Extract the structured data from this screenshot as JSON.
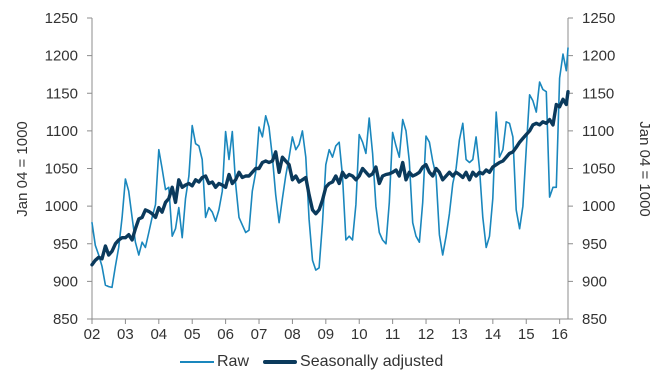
{
  "chart_data": {
    "type": "line",
    "xlabel": "",
    "ylabel_left": "Jan 04 = 1000",
    "ylabel_right": "Jan 04 = 1000",
    "ylim": [
      850,
      1250
    ],
    "yticks": [
      850,
      900,
      950,
      1000,
      1050,
      1100,
      1150,
      1200,
      1250
    ],
    "xlim": [
      2002.0,
      2016.25
    ],
    "xticks": [
      {
        "value": 2002,
        "label": "02"
      },
      {
        "value": 2003,
        "label": "03"
      },
      {
        "value": 2004,
        "label": "04"
      },
      {
        "value": 2005,
        "label": "05"
      },
      {
        "value": 2006,
        "label": "06"
      },
      {
        "value": 2007,
        "label": "07"
      },
      {
        "value": 2008,
        "label": "08"
      },
      {
        "value": 2009,
        "label": "09"
      },
      {
        "value": 2010,
        "label": "10"
      },
      {
        "value": 2011,
        "label": "11"
      },
      {
        "value": 2012,
        "label": "12"
      },
      {
        "value": 2013,
        "label": "13"
      },
      {
        "value": 2014,
        "label": "14"
      },
      {
        "value": 2015,
        "label": "15"
      },
      {
        "value": 2016,
        "label": "16"
      }
    ],
    "grid": false,
    "legend_position": "bottom",
    "series": [
      {
        "name": "Raw",
        "color": "#1a87bd",
        "width": "thin",
        "points": [
          [
            2002.0,
            978
          ],
          [
            2002.1,
            948
          ],
          [
            2002.2,
            935
          ],
          [
            2002.3,
            920
          ],
          [
            2002.4,
            895
          ],
          [
            2002.5,
            893
          ],
          [
            2002.6,
            892
          ],
          [
            2002.7,
            920
          ],
          [
            2002.8,
            945
          ],
          [
            2002.9,
            985
          ],
          [
            2003.0,
            1036
          ],
          [
            2003.1,
            1020
          ],
          [
            2003.2,
            985
          ],
          [
            2003.3,
            952
          ],
          [
            2003.4,
            935
          ],
          [
            2003.5,
            952
          ],
          [
            2003.6,
            945
          ],
          [
            2003.7,
            965
          ],
          [
            2003.8,
            985
          ],
          [
            2003.9,
            1002
          ],
          [
            2004.0,
            1075
          ],
          [
            2004.1,
            1050
          ],
          [
            2004.2,
            1022
          ],
          [
            2004.3,
            1025
          ],
          [
            2004.4,
            960
          ],
          [
            2004.5,
            970
          ],
          [
            2004.6,
            998
          ],
          [
            2004.7,
            958
          ],
          [
            2004.8,
            1010
          ],
          [
            2004.9,
            1040
          ],
          [
            2005.0,
            1107
          ],
          [
            2005.1,
            1083
          ],
          [
            2005.2,
            1080
          ],
          [
            2005.3,
            1062
          ],
          [
            2005.4,
            985
          ],
          [
            2005.5,
            998
          ],
          [
            2005.6,
            992
          ],
          [
            2005.7,
            980
          ],
          [
            2005.8,
            995
          ],
          [
            2005.9,
            1020
          ],
          [
            2006.0,
            1099
          ],
          [
            2006.1,
            1062
          ],
          [
            2006.2,
            1099
          ],
          [
            2006.3,
            1030
          ],
          [
            2006.4,
            985
          ],
          [
            2006.5,
            975
          ],
          [
            2006.6,
            965
          ],
          [
            2006.7,
            968
          ],
          [
            2006.8,
            1020
          ],
          [
            2006.9,
            1045
          ],
          [
            2007.0,
            1105
          ],
          [
            2007.1,
            1092
          ],
          [
            2007.2,
            1120
          ],
          [
            2007.3,
            1105
          ],
          [
            2007.4,
            1065
          ],
          [
            2007.5,
            1015
          ],
          [
            2007.6,
            978
          ],
          [
            2007.7,
            1010
          ],
          [
            2007.8,
            1040
          ],
          [
            2007.9,
            1065
          ],
          [
            2008.0,
            1092
          ],
          [
            2008.1,
            1075
          ],
          [
            2008.2,
            1082
          ],
          [
            2008.3,
            1100
          ],
          [
            2008.4,
            1065
          ],
          [
            2008.5,
            982
          ],
          [
            2008.6,
            928
          ],
          [
            2008.7,
            915
          ],
          [
            2008.8,
            918
          ],
          [
            2008.9,
            978
          ],
          [
            2009.0,
            1055
          ],
          [
            2009.1,
            1075
          ],
          [
            2009.2,
            1065
          ],
          [
            2009.3,
            1080
          ],
          [
            2009.4,
            1085
          ],
          [
            2009.5,
            1040
          ],
          [
            2009.6,
            955
          ],
          [
            2009.7,
            960
          ],
          [
            2009.8,
            955
          ],
          [
            2009.9,
            1002
          ],
          [
            2010.0,
            1095
          ],
          [
            2010.1,
            1085
          ],
          [
            2010.2,
            1070
          ],
          [
            2010.3,
            1117
          ],
          [
            2010.4,
            1070
          ],
          [
            2010.5,
            1000
          ],
          [
            2010.6,
            965
          ],
          [
            2010.7,
            955
          ],
          [
            2010.8,
            950
          ],
          [
            2010.9,
            1005
          ],
          [
            2011.0,
            1098
          ],
          [
            2011.1,
            1080
          ],
          [
            2011.2,
            1065
          ],
          [
            2011.3,
            1115
          ],
          [
            2011.4,
            1100
          ],
          [
            2011.5,
            1060
          ],
          [
            2011.6,
            978
          ],
          [
            2011.7,
            960
          ],
          [
            2011.8,
            952
          ],
          [
            2011.9,
            1005
          ],
          [
            2012.0,
            1093
          ],
          [
            2012.1,
            1085
          ],
          [
            2012.2,
            1060
          ],
          [
            2012.3,
            1040
          ],
          [
            2012.4,
            962
          ],
          [
            2012.5,
            935
          ],
          [
            2012.6,
            960
          ],
          [
            2012.7,
            990
          ],
          [
            2012.8,
            1030
          ],
          [
            2012.9,
            1050
          ],
          [
            2013.0,
            1088
          ],
          [
            2013.1,
            1110
          ],
          [
            2013.2,
            1062
          ],
          [
            2013.3,
            1058
          ],
          [
            2013.4,
            1062
          ],
          [
            2013.5,
            1092
          ],
          [
            2013.6,
            1050
          ],
          [
            2013.7,
            985
          ],
          [
            2013.8,
            945
          ],
          [
            2013.9,
            960
          ],
          [
            2014.0,
            1010
          ],
          [
            2014.1,
            1125
          ],
          [
            2014.2,
            1065
          ],
          [
            2014.3,
            1075
          ],
          [
            2014.4,
            1112
          ],
          [
            2014.5,
            1110
          ],
          [
            2014.6,
            1092
          ],
          [
            2014.7,
            995
          ],
          [
            2014.8,
            970
          ],
          [
            2014.9,
            1000
          ],
          [
            2015.0,
            1075
          ],
          [
            2015.1,
            1148
          ],
          [
            2015.2,
            1140
          ],
          [
            2015.3,
            1125
          ],
          [
            2015.4,
            1165
          ],
          [
            2015.5,
            1155
          ],
          [
            2015.6,
            1152
          ],
          [
            2015.7,
            1012
          ],
          [
            2015.8,
            1025
          ],
          [
            2015.9,
            1025
          ],
          [
            2016.0,
            1170
          ],
          [
            2016.1,
            1202
          ],
          [
            2016.2,
            1180
          ],
          [
            2016.25,
            1210
          ]
        ]
      },
      {
        "name": "Seasonally adjusted",
        "color": "#0b3a5c",
        "width": "thick",
        "points": [
          [
            2002.0,
            922
          ],
          [
            2002.1,
            928
          ],
          [
            2002.2,
            932
          ],
          [
            2002.3,
            930
          ],
          [
            2002.4,
            947
          ],
          [
            2002.5,
            935
          ],
          [
            2002.6,
            940
          ],
          [
            2002.7,
            950
          ],
          [
            2002.8,
            955
          ],
          [
            2002.9,
            958
          ],
          [
            2003.0,
            958
          ],
          [
            2003.1,
            962
          ],
          [
            2003.2,
            955
          ],
          [
            2003.3,
            970
          ],
          [
            2003.4,
            983
          ],
          [
            2003.5,
            985
          ],
          [
            2003.6,
            995
          ],
          [
            2003.7,
            993
          ],
          [
            2003.8,
            990
          ],
          [
            2003.9,
            985
          ],
          [
            2004.0,
            998
          ],
          [
            2004.1,
            992
          ],
          [
            2004.2,
            1005
          ],
          [
            2004.3,
            1010
          ],
          [
            2004.4,
            1025
          ],
          [
            2004.5,
            1005
          ],
          [
            2004.6,
            1035
          ],
          [
            2004.7,
            1025
          ],
          [
            2004.8,
            1028
          ],
          [
            2004.9,
            1030
          ],
          [
            2005.0,
            1027
          ],
          [
            2005.1,
            1035
          ],
          [
            2005.2,
            1032
          ],
          [
            2005.3,
            1038
          ],
          [
            2005.4,
            1040
          ],
          [
            2005.5,
            1030
          ],
          [
            2005.6,
            1032
          ],
          [
            2005.7,
            1025
          ],
          [
            2005.8,
            1030
          ],
          [
            2005.9,
            1028
          ],
          [
            2006.0,
            1025
          ],
          [
            2006.1,
            1042
          ],
          [
            2006.2,
            1030
          ],
          [
            2006.3,
            1035
          ],
          [
            2006.4,
            1045
          ],
          [
            2006.5,
            1038
          ],
          [
            2006.6,
            1040
          ],
          [
            2006.7,
            1040
          ],
          [
            2006.8,
            1045
          ],
          [
            2006.9,
            1050
          ],
          [
            2007.0,
            1050
          ],
          [
            2007.1,
            1058
          ],
          [
            2007.2,
            1060
          ],
          [
            2007.3,
            1058
          ],
          [
            2007.4,
            1060
          ],
          [
            2007.5,
            1072
          ],
          [
            2007.6,
            1045
          ],
          [
            2007.7,
            1065
          ],
          [
            2007.8,
            1060
          ],
          [
            2007.9,
            1055
          ],
          [
            2008.0,
            1035
          ],
          [
            2008.1,
            1040
          ],
          [
            2008.2,
            1032
          ],
          [
            2008.3,
            1035
          ],
          [
            2008.4,
            1038
          ],
          [
            2008.5,
            1015
          ],
          [
            2008.6,
            995
          ],
          [
            2008.7,
            990
          ],
          [
            2008.8,
            995
          ],
          [
            2008.9,
            1008
          ],
          [
            2009.0,
            1025
          ],
          [
            2009.1,
            1030
          ],
          [
            2009.2,
            1032
          ],
          [
            2009.3,
            1040
          ],
          [
            2009.4,
            1030
          ],
          [
            2009.5,
            1045
          ],
          [
            2009.6,
            1038
          ],
          [
            2009.7,
            1042
          ],
          [
            2009.8,
            1040
          ],
          [
            2009.9,
            1035
          ],
          [
            2010.0,
            1040
          ],
          [
            2010.1,
            1050
          ],
          [
            2010.2,
            1045
          ],
          [
            2010.3,
            1040
          ],
          [
            2010.4,
            1043
          ],
          [
            2010.5,
            1052
          ],
          [
            2010.6,
            1030
          ],
          [
            2010.7,
            1040
          ],
          [
            2010.8,
            1042
          ],
          [
            2010.9,
            1043
          ],
          [
            2011.0,
            1045
          ],
          [
            2011.1,
            1048
          ],
          [
            2011.2,
            1040
          ],
          [
            2011.3,
            1058
          ],
          [
            2011.4,
            1035
          ],
          [
            2011.5,
            1045
          ],
          [
            2011.6,
            1040
          ],
          [
            2011.7,
            1042
          ],
          [
            2011.8,
            1045
          ],
          [
            2011.9,
            1052
          ],
          [
            2012.0,
            1055
          ],
          [
            2012.1,
            1045
          ],
          [
            2012.2,
            1040
          ],
          [
            2012.3,
            1050
          ],
          [
            2012.4,
            1045
          ],
          [
            2012.5,
            1035
          ],
          [
            2012.6,
            1040
          ],
          [
            2012.7,
            1045
          ],
          [
            2012.8,
            1040
          ],
          [
            2012.9,
            1045
          ],
          [
            2013.0,
            1042
          ],
          [
            2013.1,
            1038
          ],
          [
            2013.2,
            1045
          ],
          [
            2013.3,
            1035
          ],
          [
            2013.4,
            1045
          ],
          [
            2013.5,
            1040
          ],
          [
            2013.6,
            1045
          ],
          [
            2013.7,
            1043
          ],
          [
            2013.8,
            1048
          ],
          [
            2013.9,
            1045
          ],
          [
            2014.0,
            1052
          ],
          [
            2014.1,
            1055
          ],
          [
            2014.2,
            1058
          ],
          [
            2014.3,
            1060
          ],
          [
            2014.4,
            1065
          ],
          [
            2014.5,
            1070
          ],
          [
            2014.6,
            1072
          ],
          [
            2014.7,
            1078
          ],
          [
            2014.8,
            1085
          ],
          [
            2014.9,
            1090
          ],
          [
            2015.0,
            1095
          ],
          [
            2015.1,
            1100
          ],
          [
            2015.2,
            1108
          ],
          [
            2015.3,
            1110
          ],
          [
            2015.4,
            1108
          ],
          [
            2015.5,
            1112
          ],
          [
            2015.6,
            1110
          ],
          [
            2015.7,
            1115
          ],
          [
            2015.8,
            1108
          ],
          [
            2015.9,
            1135
          ],
          [
            2016.0,
            1132
          ],
          [
            2016.1,
            1142
          ],
          [
            2016.2,
            1135
          ],
          [
            2016.25,
            1152
          ]
        ]
      }
    ]
  }
}
